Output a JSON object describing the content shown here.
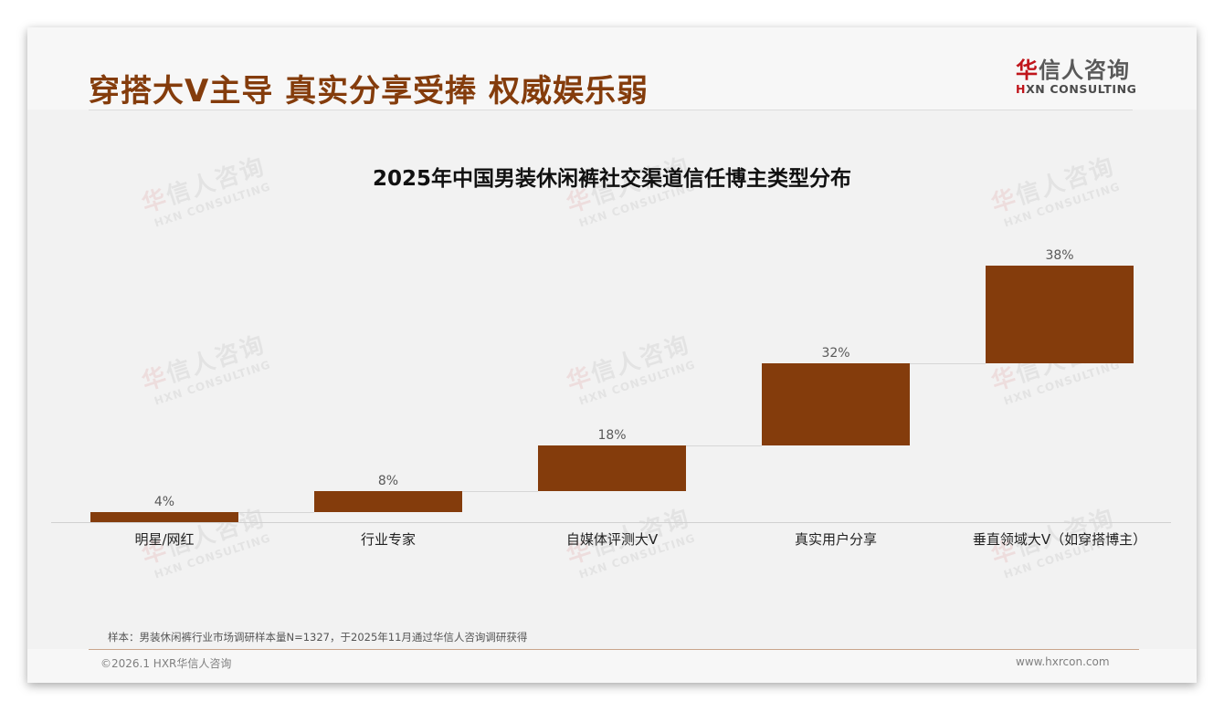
{
  "header": {
    "title": "穿搭大V主导 真实分享受捧 权威娱乐弱",
    "logo_cn_first": "华",
    "logo_cn_rest": "信人咨询",
    "logo_en_first": "H",
    "logo_en_rest": "XN CONSULTING"
  },
  "watermark": {
    "cn_first": "华",
    "cn_rest": "信人咨询",
    "en": "HXN CONSULTING"
  },
  "colors": {
    "accent": "#843c0c",
    "bar": "#843c0c",
    "logo_red": "#c0151b"
  },
  "chart_data": {
    "type": "bar",
    "subtype": "waterfall",
    "title": "2025年中国男装休闲裤社交渠道信任博主类型分布",
    "categories": [
      "明星/网红",
      "行业专家",
      "自媒体评测大V",
      "真实用户分享",
      "垂直领域大V（如穿搭博主）"
    ],
    "values": [
      4,
      8,
      18,
      32,
      38
    ],
    "value_labels": [
      "4%",
      "8%",
      "18%",
      "32%",
      "38%"
    ],
    "cumulative_start": [
      0,
      4,
      12,
      30,
      62
    ],
    "cumulative_end": [
      4,
      12,
      30,
      62,
      100
    ],
    "unit": "%",
    "xlabel": "",
    "ylabel": "",
    "ylim": [
      0,
      100
    ],
    "grid": false,
    "legend": null
  },
  "footer": {
    "note": "样本：男装休闲裤行业市场调研样本量N=1327，于2025年11月通过华信人咨询调研获得",
    "copyright": "©2026.1 HXR华信人咨询",
    "website": "www.hxrcon.com"
  }
}
